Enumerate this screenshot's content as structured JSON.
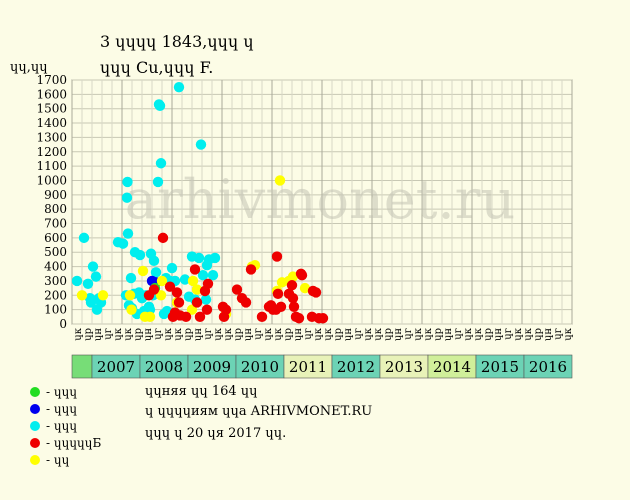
{
  "header": {
    "title_line1": "3 ɥɥɥɥ 1843,ɥɥɥ ɥ",
    "title_line2": "ɥɥɥ Cu,ɥɥɥ F.",
    "y_unit": "ɥɥ,ɥɥ"
  },
  "legend": [
    {
      "label": "- ɥɥɥ",
      "color": "#22dd22"
    },
    {
      "label": "- ɥɥɥ",
      "color": "#0000ee"
    },
    {
      "label": "- ɥɥɥ",
      "color": "#00eeee"
    },
    {
      "label": "- ɥɥɥɥɥБ",
      "color": "#ee0000"
    },
    {
      "label": "- ɥɥ",
      "color": "#ffff00"
    }
  ],
  "notes": [
    "ɥɥняя ɥɥ 164 ɥɥ",
    "ɥ ɥɥɥɥиям ɥɥа ARHIVMONET.RU",
    "ɥɥɥ ɥ 20 ɥя 2017 ɥɥ."
  ],
  "watermark": "arhivmonet.ru",
  "chart_data": {
    "type": "scatter",
    "ylim": [
      0,
      1700
    ],
    "y_ticks": [
      0,
      100,
      200,
      300,
      400,
      500,
      600,
      700,
      800,
      900,
      1000,
      1100,
      1200,
      1300,
      1400,
      1500,
      1600,
      1700
    ],
    "quarter_labels": [
      "ɥк",
      "ɥр",
      "ɥн",
      "ɥг",
      "ɥк"
    ],
    "years": [
      "2007",
      "2008",
      "2009",
      "2010",
      "2011",
      "2012",
      "2013",
      "2014",
      "2015",
      "2016"
    ],
    "year_colors": [
      "#6cd3b5",
      "#6cd3b5",
      "#6cd3b5",
      "#6cd3b5",
      "#e8f2b8",
      "#6cd3b5",
      "#e8f2b8",
      "#d0ef9a",
      "#6cd3b5",
      "#6cd3b5"
    ],
    "grid": true,
    "series": [
      {
        "color": "#00eeee",
        "points": [
          [
            0.0,
            300
          ],
          [
            0.7,
            600
          ],
          [
            1.1,
            280
          ],
          [
            1.3,
            180
          ],
          [
            1.4,
            150
          ],
          [
            1.6,
            400
          ],
          [
            1.9,
            330
          ],
          [
            2.0,
            100
          ],
          [
            2.2,
            180
          ],
          [
            2.4,
            150
          ],
          [
            4.1,
            570
          ],
          [
            4.6,
            560
          ],
          [
            4.9,
            200
          ],
          [
            5.0,
            880
          ],
          [
            5.05,
            990
          ],
          [
            5.1,
            630
          ],
          [
            5.2,
            130
          ],
          [
            5.4,
            320
          ],
          [
            5.5,
            110
          ],
          [
            5.7,
            210
          ],
          [
            5.8,
            500
          ],
          [
            6.0,
            70
          ],
          [
            6.3,
            480
          ],
          [
            6.5,
            180
          ],
          [
            6.7,
            90
          ],
          [
            6.9,
            200
          ],
          [
            7.2,
            120
          ],
          [
            7.3,
            100
          ],
          [
            7.4,
            490
          ],
          [
            7.6,
            200
          ],
          [
            7.7,
            440
          ],
          [
            7.9,
            360
          ],
          [
            8.1,
            990
          ],
          [
            8.2,
            1530
          ],
          [
            8.3,
            1520
          ],
          [
            8.4,
            1120
          ],
          [
            8.7,
            70
          ],
          [
            8.9,
            320
          ],
          [
            9.0,
            90
          ],
          [
            9.3,
            300
          ],
          [
            9.5,
            390
          ],
          [
            9.8,
            300
          ],
          [
            10.2,
            1650
          ],
          [
            10.8,
            310
          ],
          [
            11.5,
            470
          ],
          [
            11.8,
            170
          ],
          [
            12.2,
            460
          ],
          [
            12.4,
            1250
          ],
          [
            12.6,
            340
          ],
          [
            12.9,
            170
          ],
          [
            13.0,
            410
          ],
          [
            13.2,
            450
          ],
          [
            13.6,
            340
          ],
          [
            13.8,
            460
          ],
          [
            11.2,
            190
          ],
          [
            6.2,
            220
          ]
        ]
      },
      {
        "color": "#0000ee",
        "points": [
          [
            7.5,
            300
          ],
          [
            7.9,
            290
          ]
        ]
      },
      {
        "color": "#22dd22",
        "points": [
          [
            7.8,
            250
          ]
        ]
      },
      {
        "color": "#ffff00",
        "points": [
          [
            0.5,
            200
          ],
          [
            2.6,
            200
          ],
          [
            5.3,
            200
          ],
          [
            5.45,
            100
          ],
          [
            6.6,
            370
          ],
          [
            6.8,
            50
          ],
          [
            7.3,
            50
          ],
          [
            8.4,
            200
          ],
          [
            8.5,
            300
          ],
          [
            10.0,
            150
          ],
          [
            11.5,
            100
          ],
          [
            11.6,
            300
          ],
          [
            12.0,
            240
          ],
          [
            14.9,
            70
          ],
          [
            17.5,
            400
          ],
          [
            17.8,
            410
          ],
          [
            20.0,
            230
          ],
          [
            20.3,
            1000
          ],
          [
            20.5,
            290
          ],
          [
            21.2,
            300
          ],
          [
            21.6,
            330
          ],
          [
            22.8,
            250
          ]
        ]
      },
      {
        "color": "#ee0000",
        "points": [
          [
            7.2,
            200
          ],
          [
            7.7,
            240
          ],
          [
            8.6,
            600
          ],
          [
            9.3,
            260
          ],
          [
            9.6,
            50
          ],
          [
            9.8,
            80
          ],
          [
            10.0,
            220
          ],
          [
            10.2,
            150
          ],
          [
            10.3,
            60
          ],
          [
            10.9,
            50
          ],
          [
            11.8,
            380
          ],
          [
            12.0,
            150
          ],
          [
            12.3,
            50
          ],
          [
            12.8,
            230
          ],
          [
            13.0,
            100
          ],
          [
            13.1,
            280
          ],
          [
            14.6,
            120
          ],
          [
            14.7,
            50
          ],
          [
            14.9,
            100
          ],
          [
            16.0,
            240
          ],
          [
            16.5,
            180
          ],
          [
            16.9,
            150
          ],
          [
            17.4,
            380
          ],
          [
            18.5,
            50
          ],
          [
            19.2,
            120
          ],
          [
            19.4,
            130
          ],
          [
            19.6,
            100
          ],
          [
            19.9,
            100
          ],
          [
            20.0,
            470
          ],
          [
            20.1,
            210
          ],
          [
            20.4,
            120
          ],
          [
            21.2,
            210
          ],
          [
            21.5,
            270
          ],
          [
            21.6,
            180
          ],
          [
            21.7,
            120
          ],
          [
            21.9,
            50
          ],
          [
            22.2,
            40
          ],
          [
            22.5,
            340
          ],
          [
            23.5,
            50
          ],
          [
            23.9,
            220
          ],
          [
            24.2,
            40
          ],
          [
            24.6,
            40
          ],
          [
            22.4,
            350
          ],
          [
            23.6,
            230
          ]
        ]
      }
    ]
  }
}
